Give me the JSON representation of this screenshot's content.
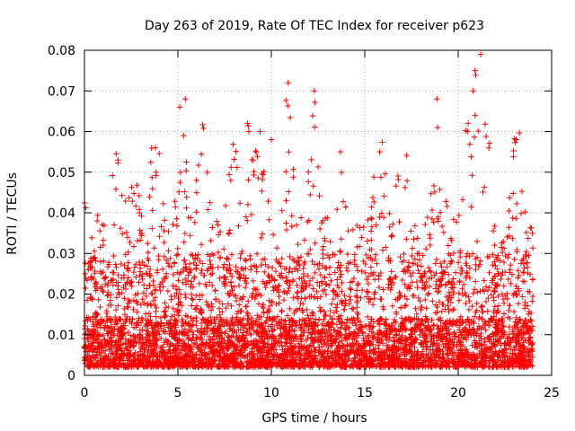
{
  "chart_data": {
    "type": "scatter",
    "title": "Day 263 of 2019, Rate Of TEC Index for receiver p623",
    "xlabel": "GPS time / hours",
    "ylabel": "ROTI / TECUs",
    "xlim": [
      0,
      25
    ],
    "ylim": [
      0,
      0.08
    ],
    "xticks": [
      0,
      5,
      10,
      15,
      20,
      25
    ],
    "xtick_labels": [
      "0",
      "5",
      "10",
      "15",
      "20",
      "25"
    ],
    "yticks": [
      0,
      0.01,
      0.02,
      0.03,
      0.04,
      0.05,
      0.06,
      0.07,
      0.08
    ],
    "ytick_labels": [
      "0",
      "0.01",
      "0.02",
      "0.03",
      "0.04",
      "0.05",
      "0.06",
      "0.07",
      "0.08"
    ],
    "grid": true,
    "marker": "+",
    "color": "#ff0000",
    "x_range_hours": [
      0,
      24
    ],
    "bulk_y_range": [
      0.002,
      0.03
    ],
    "activity_bursts": [
      {
        "x": 0.4,
        "peak": 0.048
      },
      {
        "x": 1.8,
        "peak": 0.053
      },
      {
        "x": 2.7,
        "peak": 0.045
      },
      {
        "x": 3.8,
        "peak": 0.056
      },
      {
        "x": 5.2,
        "peak": 0.068
      },
      {
        "x": 6.3,
        "peak": 0.055
      },
      {
        "x": 8.0,
        "peak": 0.053
      },
      {
        "x": 8.8,
        "peak": 0.06
      },
      {
        "x": 9.4,
        "peak": 0.06
      },
      {
        "x": 10.9,
        "peak": 0.072
      },
      {
        "x": 12.3,
        "peak": 0.07
      },
      {
        "x": 13.7,
        "peak": 0.055
      },
      {
        "x": 15.8,
        "peak": 0.055
      },
      {
        "x": 17.0,
        "peak": 0.057
      },
      {
        "x": 18.9,
        "peak": 0.061
      },
      {
        "x": 20.5,
        "peak": 0.075
      },
      {
        "x": 21.0,
        "peak": 0.079
      },
      {
        "x": 21.5,
        "peak": 0.058
      },
      {
        "x": 23.1,
        "peak": 0.058
      }
    ],
    "outliers": [
      {
        "x": 21.2,
        "y": 0.079
      },
      {
        "x": 20.9,
        "y": 0.075
      },
      {
        "x": 10.9,
        "y": 0.072
      },
      {
        "x": 12.3,
        "y": 0.07
      },
      {
        "x": 20.8,
        "y": 0.07
      },
      {
        "x": 5.4,
        "y": 0.068
      },
      {
        "x": 5.1,
        "y": 0.066
      },
      {
        "x": 20.9,
        "y": 0.064
      },
      {
        "x": 18.9,
        "y": 0.061
      },
      {
        "x": 20.5,
        "y": 0.06
      },
      {
        "x": 9.4,
        "y": 0.06
      },
      {
        "x": 8.8,
        "y": 0.06
      },
      {
        "x": 5.3,
        "y": 0.059
      },
      {
        "x": 23.1,
        "y": 0.058
      },
      {
        "x": 10.0,
        "y": 0.058
      },
      {
        "x": 15.8,
        "y": 0.055
      },
      {
        "x": 13.7,
        "y": 0.055
      },
      {
        "x": 1.8,
        "y": 0.053
      },
      {
        "x": 3.8,
        "y": 0.056
      }
    ]
  }
}
